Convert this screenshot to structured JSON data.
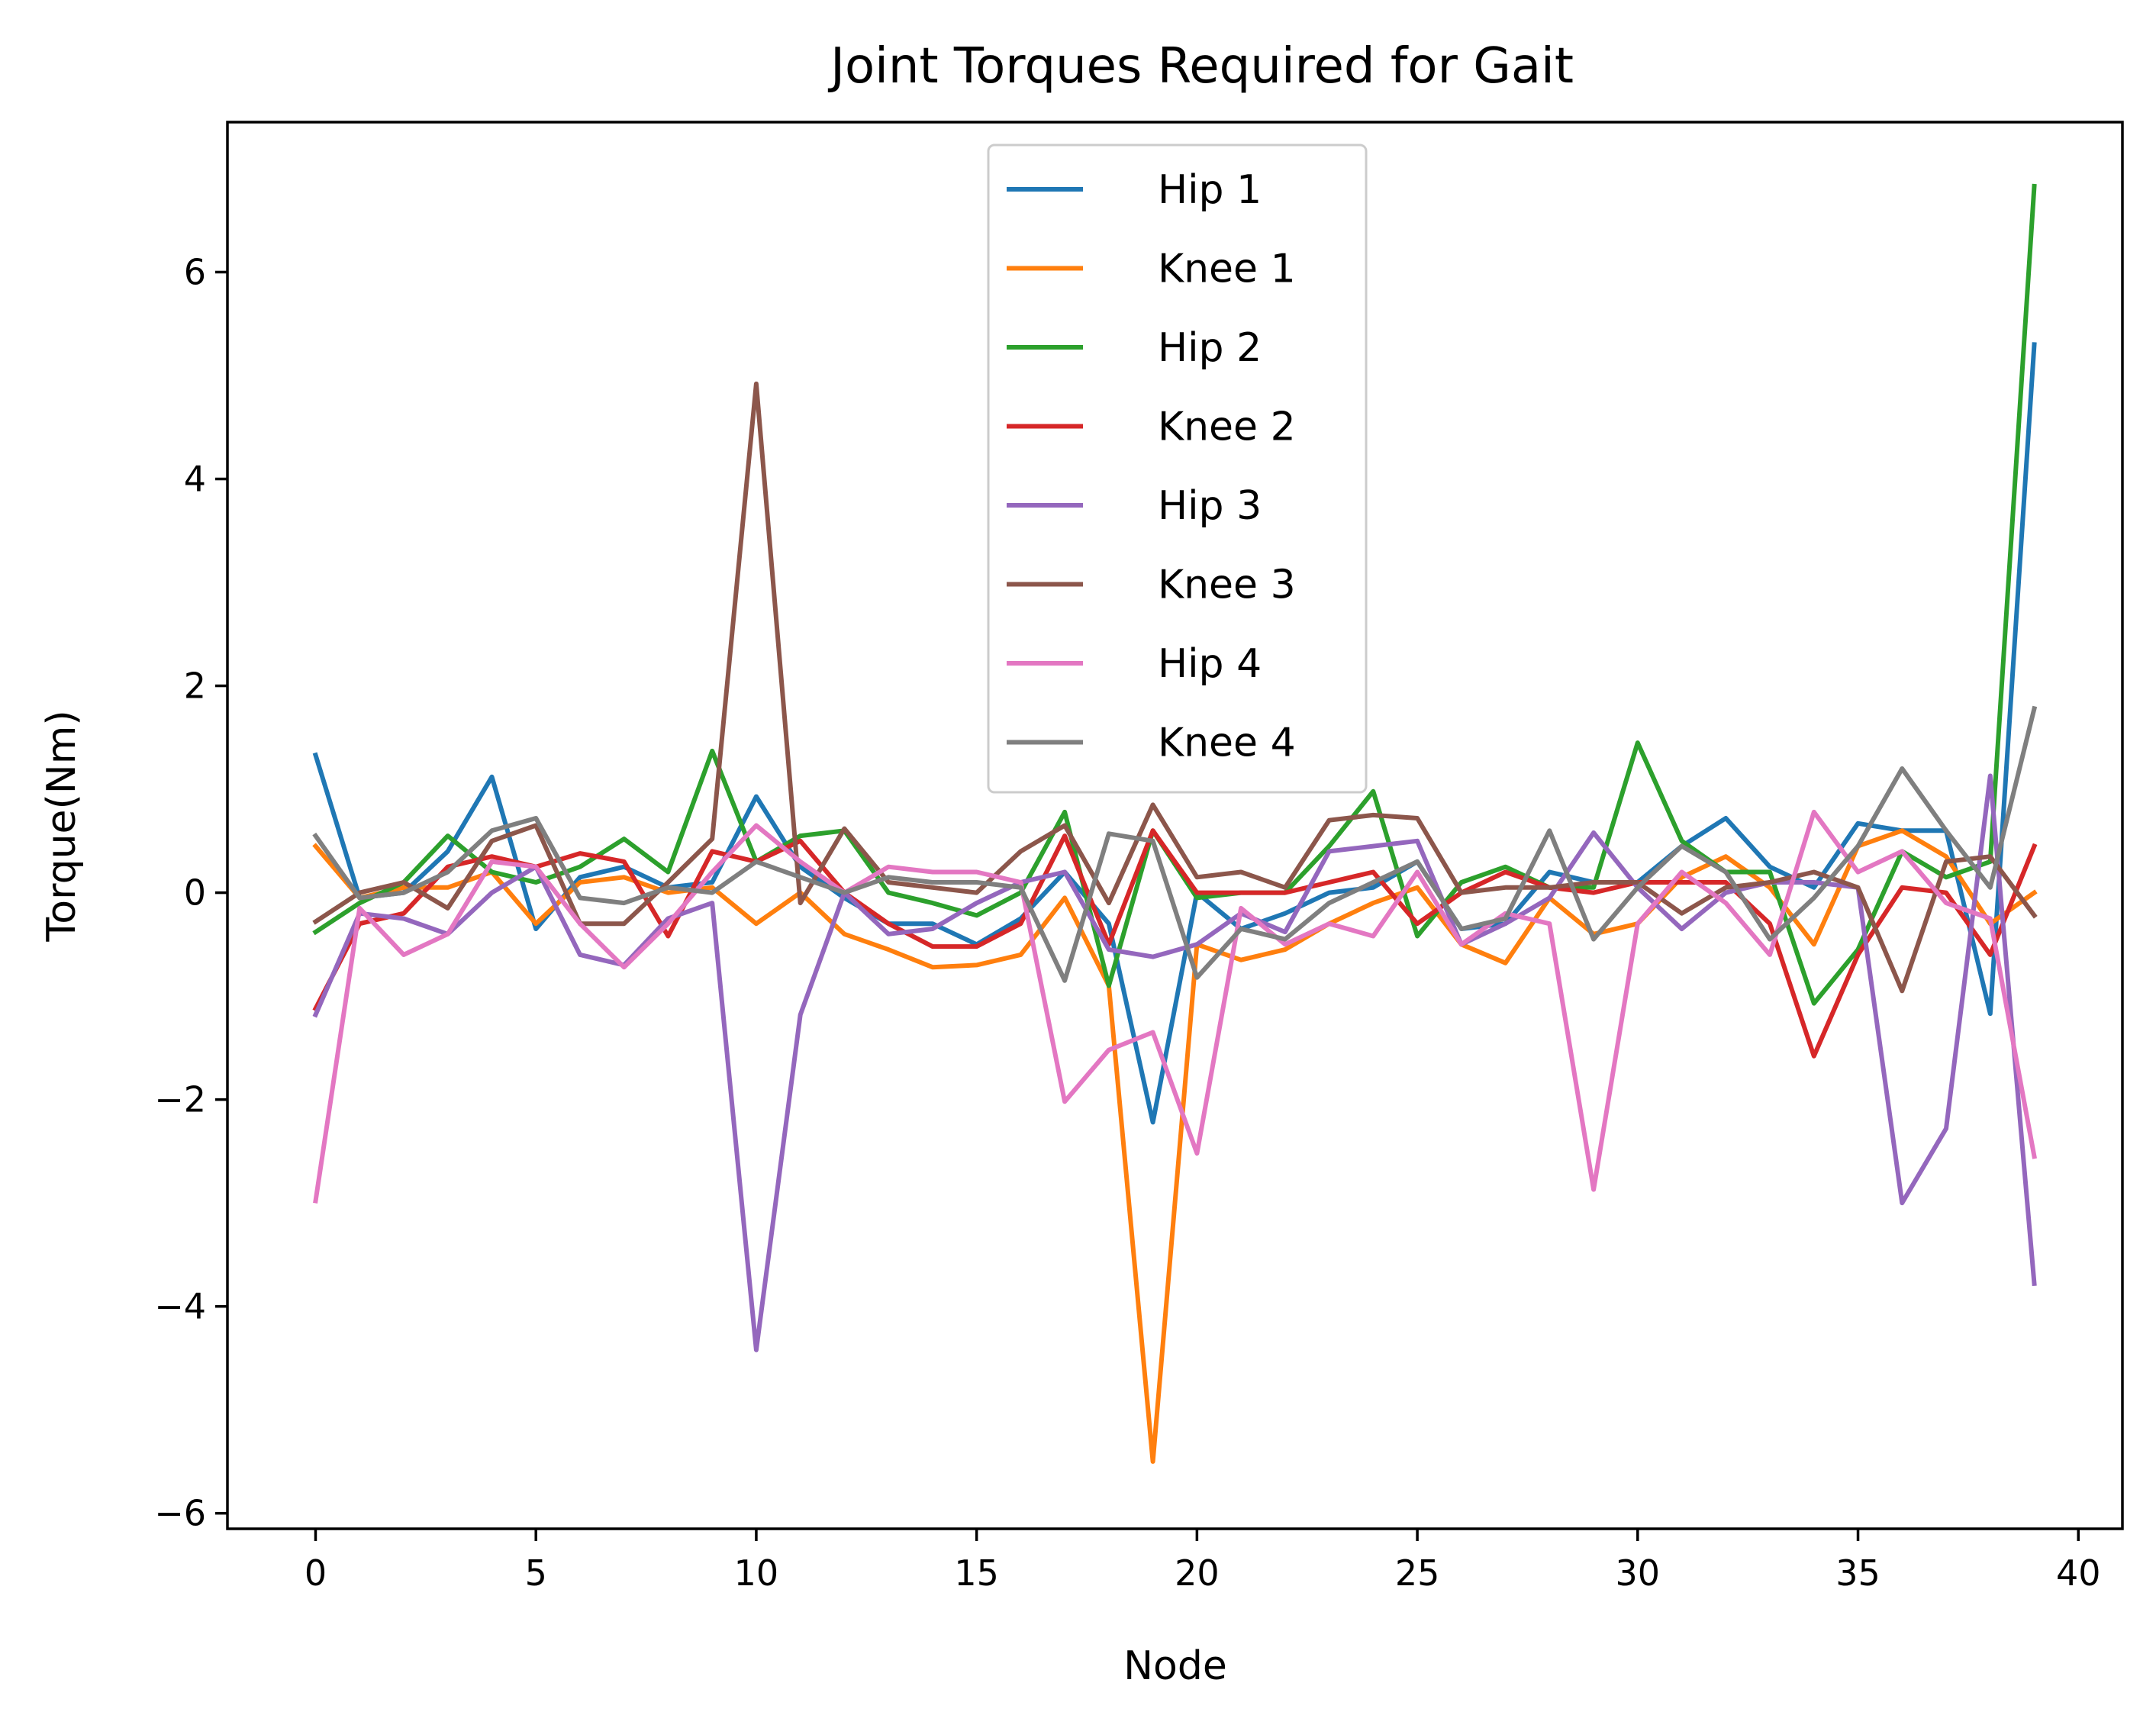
{
  "chart_data": {
    "type": "line",
    "title": "Joint Torques Required for Gait",
    "xlabel": "Node",
    "ylabel": "Torque(Nm)",
    "xlim": [
      -2,
      41
    ],
    "ylim": [
      -6.15,
      7.45
    ],
    "x_ticks": [
      0,
      5,
      10,
      15,
      20,
      25,
      30,
      35,
      40
    ],
    "x_tick_labels": [
      "0",
      "5",
      "10",
      "15",
      "20",
      "25",
      "30",
      "35",
      "40"
    ],
    "y_ticks": [
      -6,
      -4,
      -2,
      0,
      2,
      4,
      6
    ],
    "y_tick_labels": [
      "−6",
      "−4",
      "−2",
      "0",
      "2",
      "4",
      "6"
    ],
    "grid": false,
    "legend_position": "upper center",
    "x": [
      0,
      1,
      2,
      3,
      4,
      5,
      6,
      7,
      8,
      9,
      10,
      11,
      12,
      13,
      14,
      15,
      16,
      17,
      18,
      19,
      20,
      21,
      22,
      23,
      24,
      25,
      26,
      27,
      28,
      29,
      30,
      31,
      32,
      33,
      34,
      35,
      36,
      37,
      38,
      39
    ],
    "series": [
      {
        "name": "Hip 1",
        "color": "#1f77b4",
        "values": [
          1.33,
          -0.05,
          0.0,
          0.4,
          1.12,
          -0.35,
          0.15,
          0.25,
          0.05,
          0.1,
          0.93,
          0.25,
          -0.05,
          -0.3,
          -0.3,
          -0.5,
          -0.25,
          0.2,
          -0.3,
          -2.22,
          0.0,
          -0.35,
          -0.2,
          0.0,
          0.05,
          0.3,
          -0.35,
          -0.3,
          0.2,
          0.1,
          0.1,
          0.45,
          0.72,
          0.25,
          0.05,
          0.67,
          0.6,
          0.6,
          -1.17,
          5.3
        ]
      },
      {
        "name": "Knee 1",
        "color": "#ff7f0e",
        "values": [
          0.45,
          -0.05,
          0.05,
          0.05,
          0.2,
          -0.3,
          0.1,
          0.15,
          0.0,
          0.05,
          -0.3,
          0.0,
          -0.4,
          -0.55,
          -0.72,
          -0.7,
          -0.6,
          -0.05,
          -0.9,
          -5.5,
          -0.5,
          -0.65,
          -0.55,
          -0.3,
          -0.1,
          0.05,
          -0.5,
          -0.68,
          -0.05,
          -0.4,
          -0.3,
          0.15,
          0.35,
          0.05,
          -0.5,
          0.45,
          0.6,
          0.35,
          -0.3,
          0.0
        ]
      },
      {
        "name": "Hip 2",
        "color": "#2ca02c",
        "values": [
          -0.38,
          -0.1,
          0.1,
          0.55,
          0.2,
          0.1,
          0.25,
          0.52,
          0.2,
          1.37,
          0.3,
          0.55,
          0.6,
          0.0,
          -0.1,
          -0.22,
          0.0,
          0.78,
          -0.9,
          0.6,
          -0.05,
          0.0,
          0.0,
          0.45,
          0.98,
          -0.42,
          0.1,
          0.25,
          0.05,
          0.05,
          1.45,
          0.5,
          0.2,
          0.2,
          -1.07,
          -0.55,
          0.4,
          0.15,
          0.3,
          6.83
        ]
      },
      {
        "name": "Knee 2",
        "color": "#d62728",
        "values": [
          -1.12,
          -0.3,
          -0.2,
          0.25,
          0.35,
          0.25,
          0.38,
          0.3,
          -0.42,
          0.4,
          0.3,
          0.5,
          0.0,
          -0.3,
          -0.52,
          -0.52,
          -0.3,
          0.55,
          -0.5,
          0.6,
          0.0,
          0.0,
          0.0,
          0.1,
          0.2,
          -0.3,
          0.0,
          0.2,
          0.05,
          0.0,
          0.1,
          0.1,
          0.1,
          -0.3,
          -1.58,
          -0.6,
          0.05,
          0.0,
          -0.6,
          0.45
        ]
      },
      {
        "name": "Hip 3",
        "color": "#9467bd",
        "values": [
          -1.18,
          -0.2,
          -0.25,
          -0.4,
          0.0,
          0.25,
          -0.6,
          -0.7,
          -0.25,
          -0.1,
          -4.42,
          -1.18,
          0.0,
          -0.4,
          -0.35,
          -0.1,
          0.1,
          0.2,
          -0.55,
          -0.62,
          -0.5,
          -0.2,
          -0.38,
          0.4,
          0.45,
          0.5,
          -0.5,
          -0.3,
          -0.05,
          0.58,
          0.05,
          -0.35,
          0.0,
          0.1,
          0.1,
          0.05,
          -3.0,
          -2.28,
          1.13,
          -3.78
        ]
      },
      {
        "name": "Knee 3",
        "color": "#8c564b",
        "values": [
          -0.28,
          0.0,
          0.1,
          -0.15,
          0.5,
          0.65,
          -0.3,
          -0.3,
          0.1,
          0.52,
          4.92,
          -0.1,
          0.62,
          0.1,
          0.05,
          0.0,
          0.4,
          0.65,
          -0.1,
          0.85,
          0.15,
          0.2,
          0.05,
          0.7,
          0.75,
          0.72,
          0.0,
          0.05,
          0.05,
          0.1,
          0.1,
          -0.2,
          0.05,
          0.1,
          0.2,
          0.05,
          -0.95,
          0.3,
          0.35,
          -0.22
        ]
      },
      {
        "name": "Hip 4",
        "color": "#e377c2",
        "values": [
          -2.98,
          -0.15,
          -0.6,
          -0.4,
          0.3,
          0.25,
          -0.3,
          -0.72,
          -0.3,
          0.2,
          0.65,
          0.3,
          0.0,
          0.25,
          0.2,
          0.2,
          0.1,
          -2.02,
          -1.52,
          -1.35,
          -2.52,
          -0.15,
          -0.5,
          -0.3,
          -0.42,
          0.2,
          -0.5,
          -0.2,
          -0.3,
          -2.87,
          -0.3,
          0.2,
          -0.1,
          -0.6,
          0.78,
          0.2,
          0.4,
          -0.1,
          -0.25,
          -2.55
        ]
      },
      {
        "name": "Knee 4",
        "color": "#7f7f7f",
        "values": [
          0.55,
          -0.05,
          0.0,
          0.2,
          0.6,
          0.72,
          -0.05,
          -0.1,
          0.05,
          0.0,
          0.3,
          0.15,
          0.0,
          0.15,
          0.1,
          0.1,
          0.05,
          -0.85,
          0.57,
          0.5,
          -0.82,
          -0.35,
          -0.45,
          -0.1,
          0.1,
          0.3,
          -0.35,
          -0.25,
          0.6,
          -0.45,
          0.05,
          0.45,
          0.2,
          -0.45,
          -0.05,
          0.45,
          1.2,
          0.6,
          0.05,
          1.78
        ]
      }
    ]
  }
}
